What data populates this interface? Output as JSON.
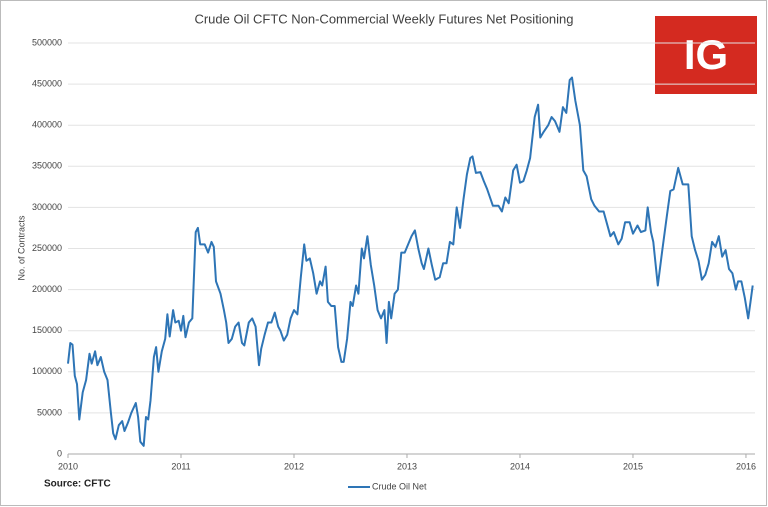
{
  "chart_data": {
    "type": "line",
    "title": "Crude Oil CFTC Non-Commercial Weekly Futures Net Positioning",
    "y_label": "No. of Contracts",
    "source": "Source: CFTC",
    "logo": "IG",
    "legend": "bottom",
    "grid": true,
    "xlim": [
      2010,
      2016.08
    ],
    "xticks": [
      2010,
      2011,
      2012,
      2013,
      2014,
      2015,
      2016
    ],
    "ylim": [
      0,
      500000
    ],
    "yticks": [
      0,
      50000,
      100000,
      150000,
      200000,
      250000,
      300000,
      350000,
      400000,
      450000,
      500000
    ],
    "x": [
      2010.0,
      2010.02,
      2010.04,
      2010.06,
      2010.08,
      2010.1,
      2010.13,
      2010.16,
      2010.19,
      2010.21,
      2010.24,
      2010.26,
      2010.29,
      2010.32,
      2010.35,
      2010.38,
      2010.4,
      2010.42,
      2010.45,
      2010.48,
      2010.5,
      2010.53,
      2010.56,
      2010.6,
      2010.62,
      2010.64,
      2010.67,
      2010.69,
      2010.71,
      2010.73,
      2010.76,
      2010.78,
      2010.8,
      2010.83,
      2010.86,
      2010.88,
      2010.9,
      2010.93,
      2010.95,
      2010.98,
      2011.0,
      2011.02,
      2011.04,
      2011.07,
      2011.1,
      2011.13,
      2011.15,
      2011.17,
      2011.21,
      2011.24,
      2011.27,
      2011.29,
      2011.31,
      2011.35,
      2011.38,
      2011.4,
      2011.42,
      2011.45,
      2011.48,
      2011.51,
      2011.54,
      2011.56,
      2011.6,
      2011.63,
      2011.66,
      2011.69,
      2011.71,
      2011.74,
      2011.77,
      2011.8,
      2011.83,
      2011.86,
      2011.88,
      2011.91,
      2011.94,
      2011.97,
      2012.0,
      2012.03,
      2012.06,
      2012.09,
      2012.11,
      2012.14,
      2012.17,
      2012.2,
      2012.23,
      2012.25,
      2012.28,
      2012.3,
      2012.33,
      2012.36,
      2012.39,
      2012.42,
      2012.44,
      2012.47,
      2012.5,
      2012.52,
      2012.55,
      2012.57,
      2012.6,
      2012.62,
      2012.65,
      2012.68,
      2012.71,
      2012.74,
      2012.77,
      2012.8,
      2012.82,
      2012.84,
      2012.86,
      2012.89,
      2012.92,
      2012.95,
      2012.98,
      2013.04,
      2013.07,
      2013.1,
      2013.13,
      2013.15,
      2013.19,
      2013.22,
      2013.25,
      2013.29,
      2013.32,
      2013.35,
      2013.38,
      2013.41,
      2013.44,
      2013.47,
      2013.5,
      2013.53,
      2013.56,
      2013.58,
      2013.61,
      2013.65,
      2013.68,
      2013.71,
      2013.76,
      2013.81,
      2013.84,
      2013.87,
      2013.9,
      2013.94,
      2013.97,
      2014.0,
      2014.03,
      2014.06,
      2014.09,
      2014.13,
      2014.16,
      2014.18,
      2014.21,
      2014.25,
      2014.28,
      2014.31,
      2014.35,
      2014.38,
      2014.41,
      2014.44,
      2014.46,
      2014.49,
      2014.53,
      2014.56,
      2014.59,
      2014.63,
      2014.66,
      2014.7,
      2014.74,
      2014.77,
      2014.8,
      2014.83,
      2014.87,
      2014.9,
      2014.93,
      2014.97,
      2015.0,
      2015.04,
      2015.07,
      2015.11,
      2015.13,
      2015.16,
      2015.18,
      2015.22,
      2015.26,
      2015.3,
      2015.33,
      2015.36,
      2015.4,
      2015.44,
      2015.47,
      2015.49,
      2015.52,
      2015.55,
      2015.58,
      2015.61,
      2015.64,
      2015.67,
      2015.7,
      2015.73,
      2015.76,
      2015.79,
      2015.82,
      2015.85,
      2015.88,
      2015.91,
      2015.93,
      2015.96,
      2015.99,
      2016.02,
      2016.04,
      2016.06
    ],
    "series": [
      {
        "name": "Crude Oil Net",
        "color": "#2e75b6",
        "values": [
          110000,
          135000,
          133000,
          95000,
          85000,
          42000,
          75000,
          90000,
          122000,
          110000,
          125000,
          108000,
          118000,
          100000,
          90000,
          50000,
          25000,
          18000,
          35000,
          40000,
          28000,
          38000,
          50000,
          62000,
          45000,
          15000,
          10000,
          45000,
          42000,
          65000,
          118000,
          130000,
          100000,
          125000,
          140000,
          170000,
          143000,
          175000,
          160000,
          162000,
          150000,
          168000,
          142000,
          160000,
          165000,
          270000,
          275000,
          255000,
          255000,
          245000,
          258000,
          252000,
          210000,
          195000,
          175000,
          160000,
          135000,
          140000,
          155000,
          160000,
          135000,
          132000,
          160000,
          165000,
          155000,
          108000,
          128000,
          145000,
          160000,
          160000,
          172000,
          155000,
          150000,
          138000,
          145000,
          165000,
          175000,
          170000,
          215000,
          255000,
          235000,
          238000,
          220000,
          195000,
          210000,
          205000,
          228000,
          185000,
          180000,
          180000,
          130000,
          112000,
          112000,
          140000,
          185000,
          180000,
          205000,
          195000,
          250000,
          238000,
          265000,
          230000,
          205000,
          175000,
          165000,
          175000,
          135000,
          185000,
          165000,
          195000,
          200000,
          245000,
          245000,
          265000,
          272000,
          250000,
          232000,
          225000,
          250000,
          230000,
          212000,
          215000,
          232000,
          232000,
          258000,
          255000,
          300000,
          275000,
          310000,
          340000,
          360000,
          362000,
          342000,
          343000,
          332000,
          322000,
          302000,
          302000,
          295000,
          312000,
          305000,
          345000,
          352000,
          330000,
          332000,
          345000,
          360000,
          410000,
          425000,
          385000,
          392000,
          400000,
          410000,
          405000,
          392000,
          422000,
          415000,
          455000,
          458000,
          430000,
          400000,
          345000,
          338000,
          310000,
          302000,
          295000,
          295000,
          280000,
          265000,
          270000,
          255000,
          262000,
          282000,
          282000,
          268000,
          278000,
          270000,
          272000,
          300000,
          270000,
          258000,
          205000,
          248000,
          290000,
          320000,
          322000,
          348000,
          328000,
          328000,
          328000,
          265000,
          248000,
          235000,
          212000,
          218000,
          232000,
          258000,
          252000,
          265000,
          240000,
          248000,
          225000,
          220000,
          200000,
          210000,
          210000,
          190000,
          165000,
          185000,
          205000
        ]
      }
    ]
  }
}
